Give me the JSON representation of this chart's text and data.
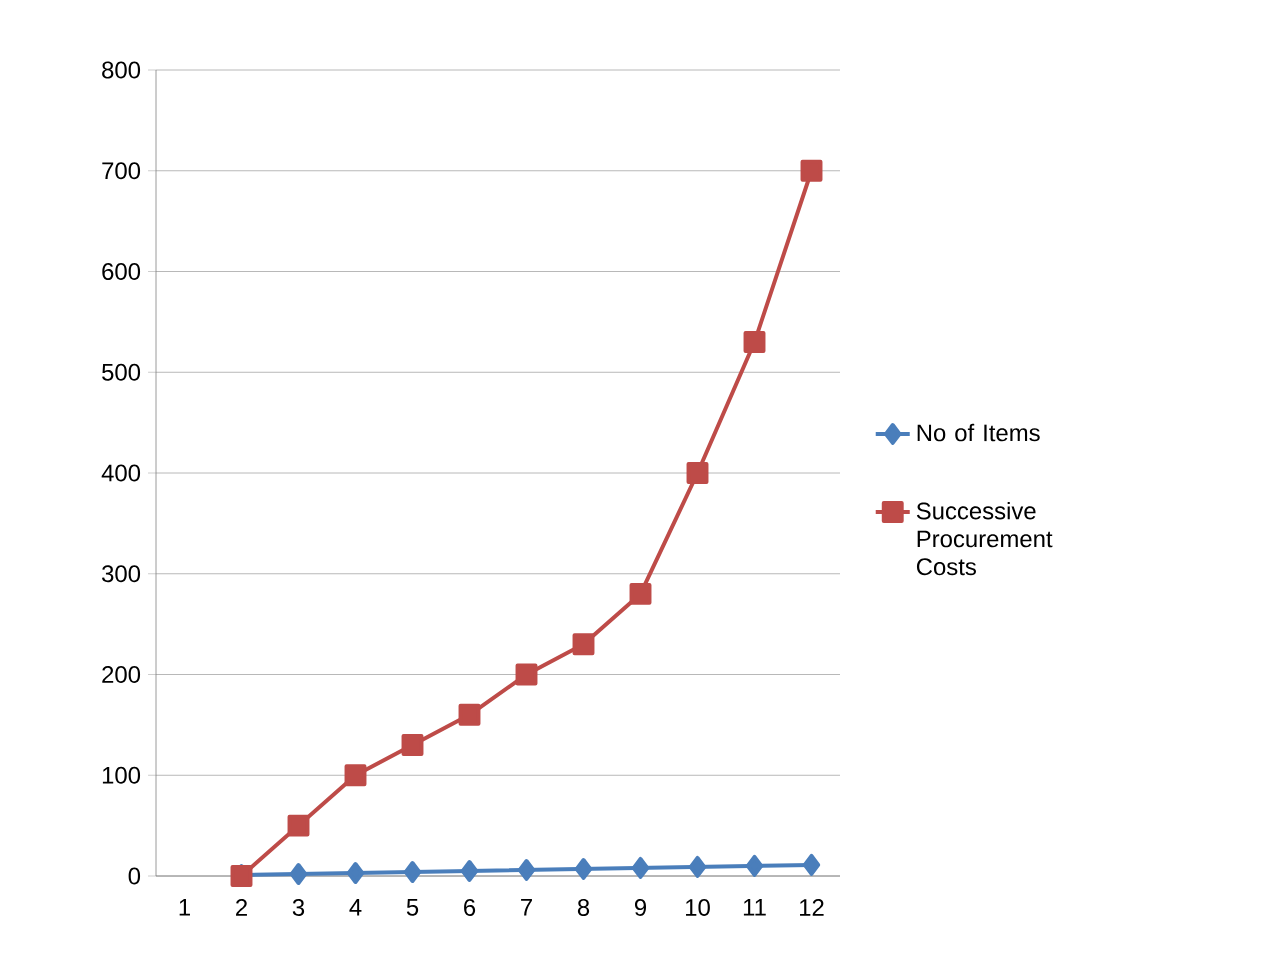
{
  "chart_data": {
    "type": "line",
    "categories": [
      "1",
      "2",
      "3",
      "4",
      "5",
      "6",
      "7",
      "8",
      "9",
      "10",
      "11",
      "12"
    ],
    "series": [
      {
        "name": "No of Items",
        "color": "#4a7ebb",
        "marker": "diamond",
        "values": [
          null,
          1,
          2,
          3,
          4,
          5,
          6,
          7,
          8,
          9,
          10,
          11
        ]
      },
      {
        "name": "Successive Procurement Costs",
        "color": "#be4b48",
        "marker": "square",
        "values": [
          null,
          0,
          50,
          100,
          130,
          160,
          200,
          230,
          280,
          400,
          530,
          700
        ]
      }
    ],
    "ylim": [
      0,
      800
    ],
    "yticks": [
      0,
      100,
      200,
      300,
      400,
      500,
      600,
      700,
      800
    ],
    "grid": "y",
    "legend": "right"
  }
}
